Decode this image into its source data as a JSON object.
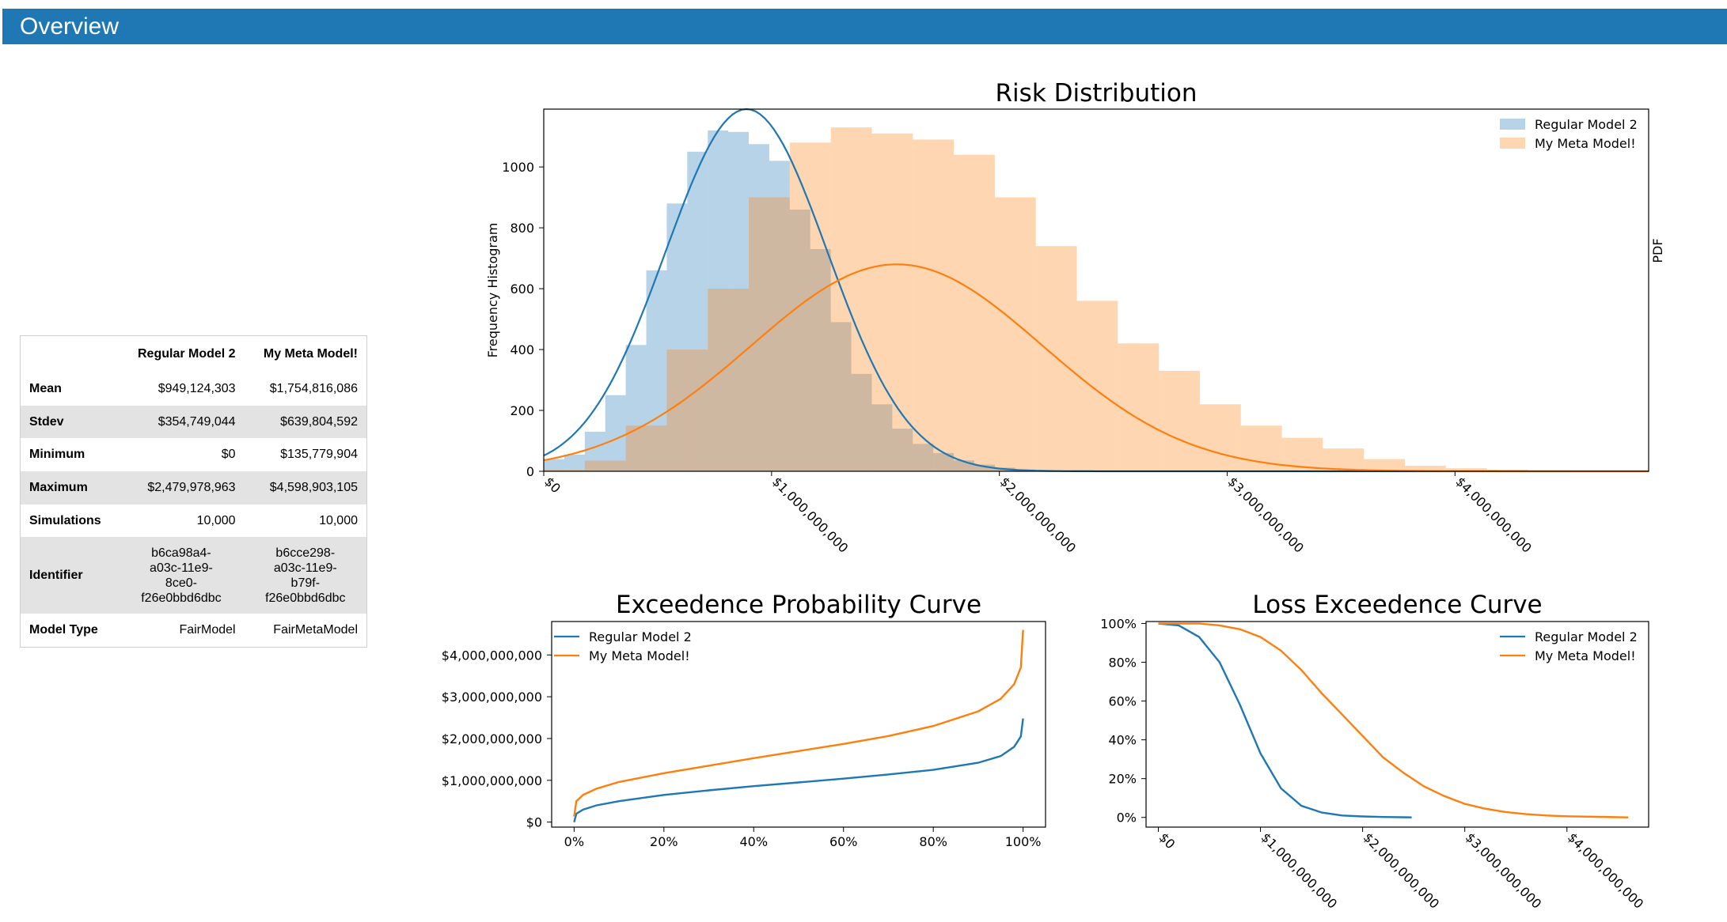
{
  "header": {
    "title": "Overview"
  },
  "stats_table": {
    "columns": [
      "",
      "Regular Model 2",
      "My Meta Model!"
    ],
    "rows": [
      {
        "label": "Mean",
        "values": [
          "$949,124,303",
          "$1,754,816,086"
        ]
      },
      {
        "label": "Stdev",
        "values": [
          "$354,749,044",
          "$639,804,592"
        ]
      },
      {
        "label": "Minimum",
        "values": [
          "$0",
          "$135,779,904"
        ]
      },
      {
        "label": "Maximum",
        "values": [
          "$2,479,978,963",
          "$4,598,903,105"
        ]
      },
      {
        "label": "Simulations",
        "values": [
          "10,000",
          "10,000"
        ]
      },
      {
        "label": "Identifier",
        "values": [
          [
            "b6ca98a4-",
            "a03c-11e9-",
            "8ce0-",
            "f26e0bbd6dbc"
          ],
          [
            "b6cce298-",
            "a03c-11e9-",
            "b79f-",
            "f26e0bbd6dbc"
          ]
        ]
      },
      {
        "label": "Model Type",
        "values": [
          "FairModel",
          "FairMetaModel"
        ]
      }
    ]
  },
  "colors": {
    "blue": "#1f77b4",
    "orange": "#ff7f0e",
    "header": "#1f77b4"
  },
  "chart_data": [
    {
      "type": "bar",
      "title": "Risk Distribution",
      "ylabel": "Frequency Histogram",
      "y2label": "PDF",
      "xlim": [
        0,
        4850000000
      ],
      "ylim": [
        0,
        1190
      ],
      "xticks": [
        0,
        1000000000,
        2000000000,
        3000000000,
        4000000000
      ],
      "xticklabels": [
        "$0",
        "$1,000,000,000",
        "$2,000,000,000",
        "$3,000,000,000",
        "$4,000,000,000"
      ],
      "yticks": [
        0,
        200,
        400,
        600,
        800,
        1000
      ],
      "legend": "top-right",
      "series": [
        {
          "name": "Regular Model 2",
          "bin_edges": [
            0,
            90000000,
            180000000,
            270000000,
            360000000,
            450000000,
            540000000,
            630000000,
            720000000,
            810000000,
            900000000,
            990000000,
            1080000000,
            1170000000,
            1260000000,
            1350000000,
            1440000000,
            1530000000,
            1620000000,
            1710000000,
            1800000000,
            1890000000,
            1980000000,
            2070000000,
            2160000000,
            2250000000
          ],
          "counts": [
            40,
            55,
            130,
            250,
            415,
            660,
            880,
            1050,
            1120,
            1115,
            1075,
            1020,
            860,
            730,
            490,
            320,
            220,
            140,
            90,
            60,
            36,
            22,
            12,
            6,
            3
          ],
          "pdf_peak_x": 890000000,
          "pdf_sd": 355000000
        },
        {
          "name": "My Meta Model!",
          "bin_edges": [
            0,
            180000000,
            360000000,
            540000000,
            720000000,
            900000000,
            1080000000,
            1260000000,
            1440000000,
            1620000000,
            1800000000,
            1980000000,
            2160000000,
            2340000000,
            2520000000,
            2700000000,
            2880000000,
            3060000000,
            3240000000,
            3420000000,
            3600000000,
            3780000000,
            3960000000,
            4140000000,
            4320000000,
            4500000000,
            4680000000
          ],
          "counts": [
            5,
            35,
            150,
            400,
            600,
            900,
            1080,
            1130,
            1110,
            1090,
            1040,
            900,
            740,
            560,
            420,
            330,
            220,
            150,
            110,
            75,
            40,
            18,
            10,
            5,
            3,
            2
          ],
          "pdf_peak_x": 1550000000,
          "pdf_sd": 640000000
        }
      ]
    },
    {
      "type": "line",
      "title": "Exceedence Probability Curve",
      "xlim": [
        -0.05,
        1.05
      ],
      "ylim": [
        -120000000,
        4800000000
      ],
      "xticks": [
        0,
        0.2,
        0.4,
        0.6,
        0.8,
        1.0
      ],
      "xticklabels": [
        "0%",
        "20%",
        "40%",
        "60%",
        "80%",
        "100%"
      ],
      "yticks": [
        0,
        1000000000,
        2000000000,
        3000000000,
        4000000000
      ],
      "yticklabels": [
        "$0",
        "$1,000,000,000",
        "$2,000,000,000",
        "$3,000,000,000",
        "$4,000,000,000"
      ],
      "legend": "top-left",
      "series": [
        {
          "name": "Regular Model 2",
          "x": [
            0,
            0.005,
            0.02,
            0.05,
            0.1,
            0.2,
            0.3,
            0.4,
            0.5,
            0.6,
            0.7,
            0.8,
            0.9,
            0.95,
            0.98,
            0.995,
            1.0
          ],
          "y": [
            0,
            200000000,
            300000000,
            400000000,
            500000000,
            650000000,
            760000000,
            860000000,
            950000000,
            1040000000,
            1140000000,
            1250000000,
            1420000000,
            1580000000,
            1800000000,
            2050000000,
            2480000000
          ]
        },
        {
          "name": "My Meta Model!",
          "x": [
            0,
            0.005,
            0.02,
            0.05,
            0.1,
            0.2,
            0.3,
            0.4,
            0.5,
            0.6,
            0.7,
            0.8,
            0.9,
            0.95,
            0.98,
            0.995,
            1.0
          ],
          "y": [
            135000000,
            500000000,
            650000000,
            800000000,
            960000000,
            1170000000,
            1350000000,
            1530000000,
            1700000000,
            1870000000,
            2060000000,
            2300000000,
            2650000000,
            2950000000,
            3300000000,
            3700000000,
            4600000000
          ]
        }
      ]
    },
    {
      "type": "line",
      "title": "Loss Exceedence Curve",
      "xlim": [
        -120000000,
        4800000000
      ],
      "ylim": [
        -0.05,
        1.01
      ],
      "xticks": [
        0,
        1000000000,
        2000000000,
        3000000000,
        4000000000
      ],
      "xticklabels": [
        "$0",
        "$1,000,000,000",
        "$2,000,000,000",
        "$3,000,000,000",
        "$4,000,000,000"
      ],
      "yticks": [
        0,
        0.2,
        0.4,
        0.6,
        0.8,
        1.0
      ],
      "yticklabels": [
        "0%",
        "20%",
        "40%",
        "60%",
        "80%",
        "100%"
      ],
      "legend": "top-right",
      "series": [
        {
          "name": "Regular Model 2",
          "x": [
            0,
            200000000,
            400000000,
            600000000,
            800000000,
            1000000000,
            1200000000,
            1400000000,
            1600000000,
            1800000000,
            2000000000,
            2200000000,
            2480000000
          ],
          "y": [
            1.0,
            0.99,
            0.93,
            0.8,
            0.58,
            0.33,
            0.15,
            0.06,
            0.025,
            0.01,
            0.005,
            0.002,
            0.0
          ]
        },
        {
          "name": "My Meta Model!",
          "x": [
            0,
            200000000,
            400000000,
            600000000,
            800000000,
            1000000000,
            1200000000,
            1400000000,
            1600000000,
            1800000000,
            2000000000,
            2200000000,
            2400000000,
            2600000000,
            2800000000,
            3000000000,
            3200000000,
            3400000000,
            3600000000,
            3800000000,
            4000000000,
            4300000000,
            4600000000
          ],
          "y": [
            1.0,
            1.0,
            1.0,
            0.99,
            0.97,
            0.93,
            0.86,
            0.76,
            0.64,
            0.53,
            0.42,
            0.31,
            0.23,
            0.16,
            0.11,
            0.07,
            0.045,
            0.028,
            0.017,
            0.01,
            0.006,
            0.003,
            0.0
          ]
        }
      ]
    }
  ]
}
